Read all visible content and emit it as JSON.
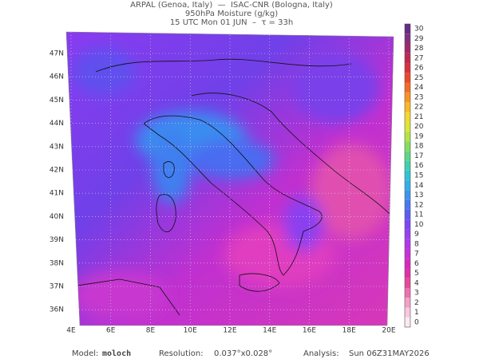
{
  "header": {
    "line1": "ARPAL (Genoa, Italy)  —  ISAC-CNR (Bologna, Italy)",
    "line2": "950hPa Moisture (g/kg)",
    "line3": "15 UTC Mon 01 JUN  –  τ = 33h"
  },
  "latitude_labels": [
    "47N",
    "46N",
    "45N",
    "44N",
    "43N",
    "42N",
    "41N",
    "40N",
    "39N",
    "38N",
    "37N",
    "36N"
  ],
  "longitude_labels": [
    "4E",
    "6E",
    "8E",
    "10E",
    "12E",
    "14E",
    "16E",
    "18E",
    "20E"
  ],
  "colorbar_labels": [
    0,
    1,
    2,
    3,
    4,
    5,
    6,
    7,
    8,
    9,
    10,
    11,
    12,
    13,
    14,
    15,
    16,
    17,
    18,
    19,
    20,
    21,
    22,
    23,
    24,
    25,
    26,
    27,
    28,
    29,
    30
  ],
  "footer": {
    "model_label": "Model:",
    "model": "moloch",
    "resolution_label": "Resolution:",
    "resolution": "0.037°x0.028°",
    "analysis_label": "Analysis:",
    "analysis": "Sun 06Z31MAY2026"
  }
}
